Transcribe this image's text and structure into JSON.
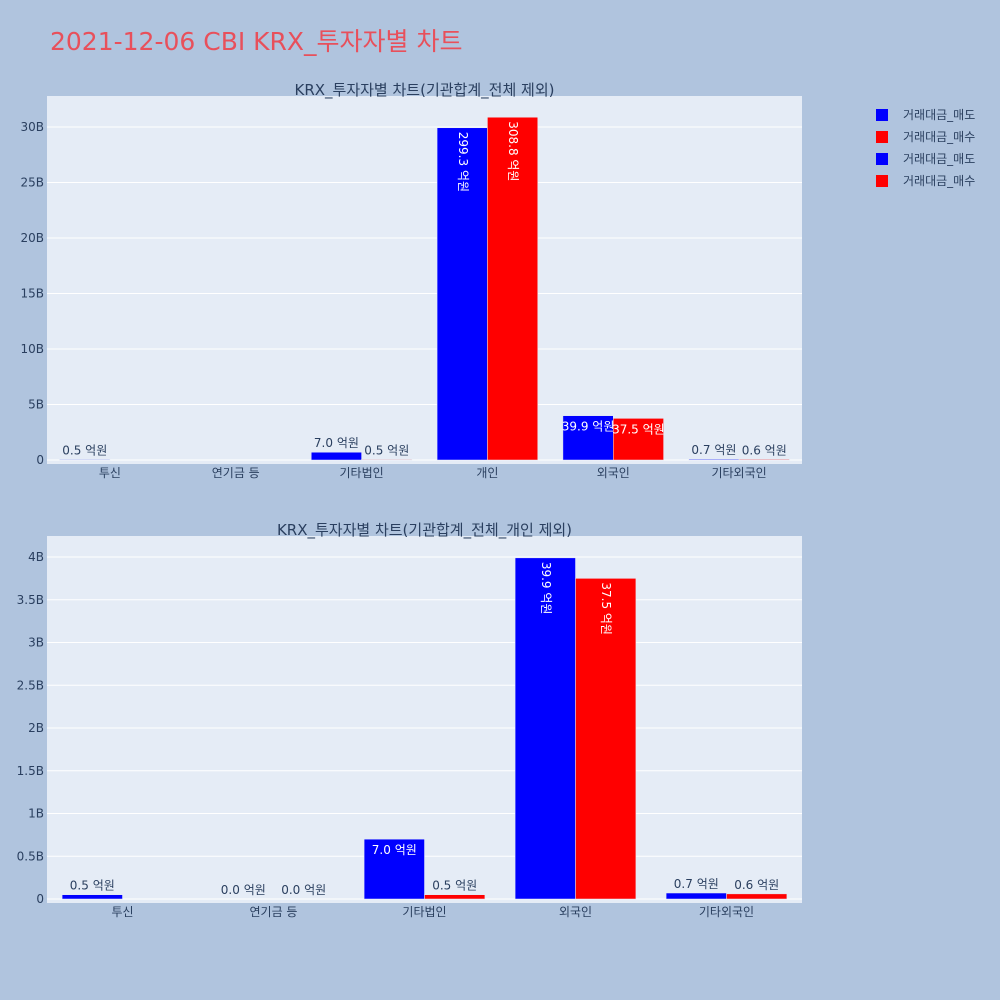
{
  "page": {
    "title": "2021-12-06 CBI KRX_투자자별 차트"
  },
  "legend": {
    "items": [
      {
        "label": "거래대금_매도",
        "color": "#0000ff"
      },
      {
        "label": "거래대금_매수",
        "color": "#ff0000"
      },
      {
        "label": "거래대금_매도",
        "color": "#0000ff"
      },
      {
        "label": "거래대금_매수",
        "color": "#ff0000"
      }
    ]
  },
  "chart_data": [
    {
      "type": "bar",
      "title": "KRX_투자자별 차트(기관합계_전체 제외)",
      "categories": [
        "투신",
        "연기금 등",
        "기타법인",
        "개인",
        "외국인",
        "기타외국인"
      ],
      "ylim": [
        0,
        32.5
      ],
      "yticks": [
        0,
        5,
        10,
        15,
        20,
        25,
        30
      ],
      "ytick_labels": [
        "0",
        "5B",
        "10B",
        "15B",
        "20B",
        "25B",
        "30B"
      ],
      "grid": true,
      "legend_position": "top-right",
      "series": [
        {
          "name": "거래대금_매도",
          "color": "#0000ff",
          "values": [
            0.05,
            0.0,
            0.7,
            29.93,
            3.99,
            0.07
          ],
          "labels": [
            "0.5 억원",
            "",
            "7.0 억원",
            "299.3 억원",
            "39.9 억원",
            "0.7 억원"
          ]
        },
        {
          "name": "거래대금_매수",
          "color": "#ff0000",
          "values": [
            0.0,
            0.0,
            0.05,
            30.88,
            3.75,
            0.06
          ],
          "labels": [
            "",
            "",
            "0.5 억원",
            "308.8 억원",
            "37.5 억원",
            "0.6 억원"
          ]
        }
      ]
    },
    {
      "type": "bar",
      "title": "KRX_투자자별 차트(기관합계_전체_개인 제외)",
      "categories": [
        "투신",
        "연기금 등",
        "기타법인",
        "외국인",
        "기타외국인"
      ],
      "ylim": [
        0,
        4.2
      ],
      "yticks": [
        0,
        0.5,
        1,
        1.5,
        2,
        2.5,
        3,
        3.5,
        4
      ],
      "ytick_labels": [
        "0",
        "0.5B",
        "1B",
        "1.5B",
        "2B",
        "2.5B",
        "3B",
        "3.5B",
        "4B"
      ],
      "grid": true,
      "series": [
        {
          "name": "거래대금_매도",
          "color": "#0000ff",
          "values": [
            0.05,
            0.0,
            0.7,
            3.99,
            0.07
          ],
          "labels": [
            "0.5 억원",
            "0.0 억원",
            "7.0 억원",
            "39.9 억원",
            "0.7 억원"
          ]
        },
        {
          "name": "거래대금_매수",
          "color": "#ff0000",
          "values": [
            0.0,
            0.0,
            0.05,
            3.75,
            0.06
          ],
          "labels": [
            "",
            "0.0 억원",
            "0.5 억원",
            "37.5 억원",
            "0.6 억원"
          ]
        }
      ]
    }
  ]
}
